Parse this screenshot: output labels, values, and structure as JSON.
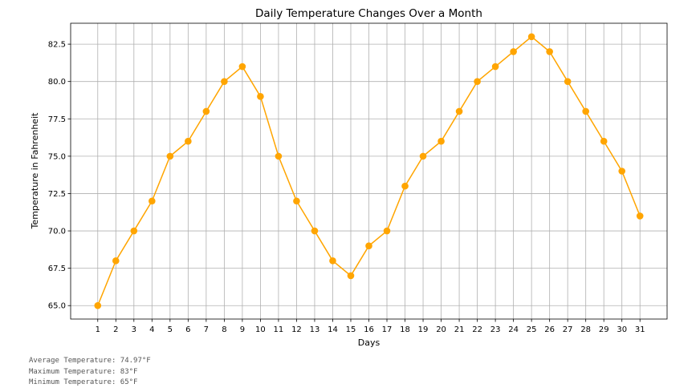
{
  "chart_data": {
    "type": "line",
    "title": "Daily Temperature Changes Over a Month",
    "xlabel": "Days",
    "ylabel": "Temperature in Fahrenheit",
    "x": [
      1,
      2,
      3,
      4,
      5,
      6,
      7,
      8,
      9,
      10,
      11,
      12,
      13,
      14,
      15,
      16,
      17,
      18,
      19,
      20,
      21,
      22,
      23,
      24,
      25,
      26,
      27,
      28,
      29,
      30,
      31
    ],
    "series": [
      {
        "values": [
          65,
          68,
          70,
          72,
          75,
          76,
          78,
          80,
          81,
          79,
          75,
          72,
          70,
          68,
          67,
          69,
          70,
          73,
          75,
          76,
          78,
          80,
          81,
          82,
          83,
          82,
          80,
          78,
          76,
          74,
          71
        ]
      }
    ],
    "xlim": [
      -0.5,
      32.5
    ],
    "ylim": [
      64.1,
      83.9
    ],
    "yticks": [
      65.0,
      67.5,
      70.0,
      72.5,
      75.0,
      77.5,
      80.0,
      82.5
    ],
    "ytick_labels": [
      "65.0",
      "67.5",
      "70.0",
      "72.5",
      "75.0",
      "77.5",
      "80.0",
      "82.5"
    ],
    "grid": true,
    "line_color": "#ffa500",
    "marker": "circle"
  },
  "stats": {
    "average": "Average Temperature: 74.97°F",
    "maximum": "Maximum Temperature: 83°F",
    "minimum": "Minimum Temperature: 65°F"
  }
}
